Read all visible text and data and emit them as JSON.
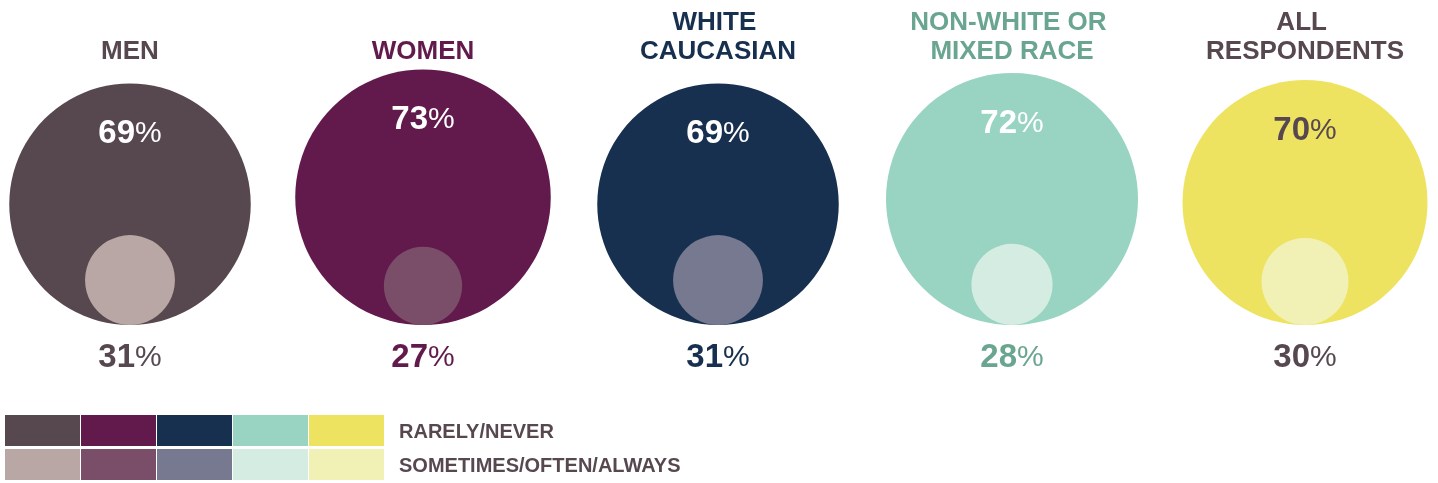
{
  "chart_data": {
    "type": "other",
    "categories": [
      "MEN",
      "WOMEN",
      "WHITE CAUCASIAN",
      "NON-WHITE OR MIXED RACE",
      "ALL RESPONDENTS"
    ],
    "legend": "bottom",
    "series": [
      {
        "name": "RARELY/NEVER",
        "values": [
          69,
          73,
          69,
          72,
          70
        ],
        "value_labels": [
          "69%",
          "73%",
          "69%",
          "72%",
          "70%"
        ],
        "colors": [
          "#574850",
          "#621a4d",
          "#17304f",
          "#98d4c1",
          "#eee360"
        ]
      },
      {
        "name": "SOMETIMES/OFTEN/ALWAYS",
        "values": [
          31,
          27,
          31,
          28,
          30
        ],
        "value_labels": [
          "31%",
          "27%",
          "31%",
          "28%",
          "30%"
        ],
        "colors": [
          "#b9a7a5",
          "#7a4e69",
          "#76798f",
          "#d4ece2",
          "#f1f1b5"
        ]
      }
    ]
  }
}
